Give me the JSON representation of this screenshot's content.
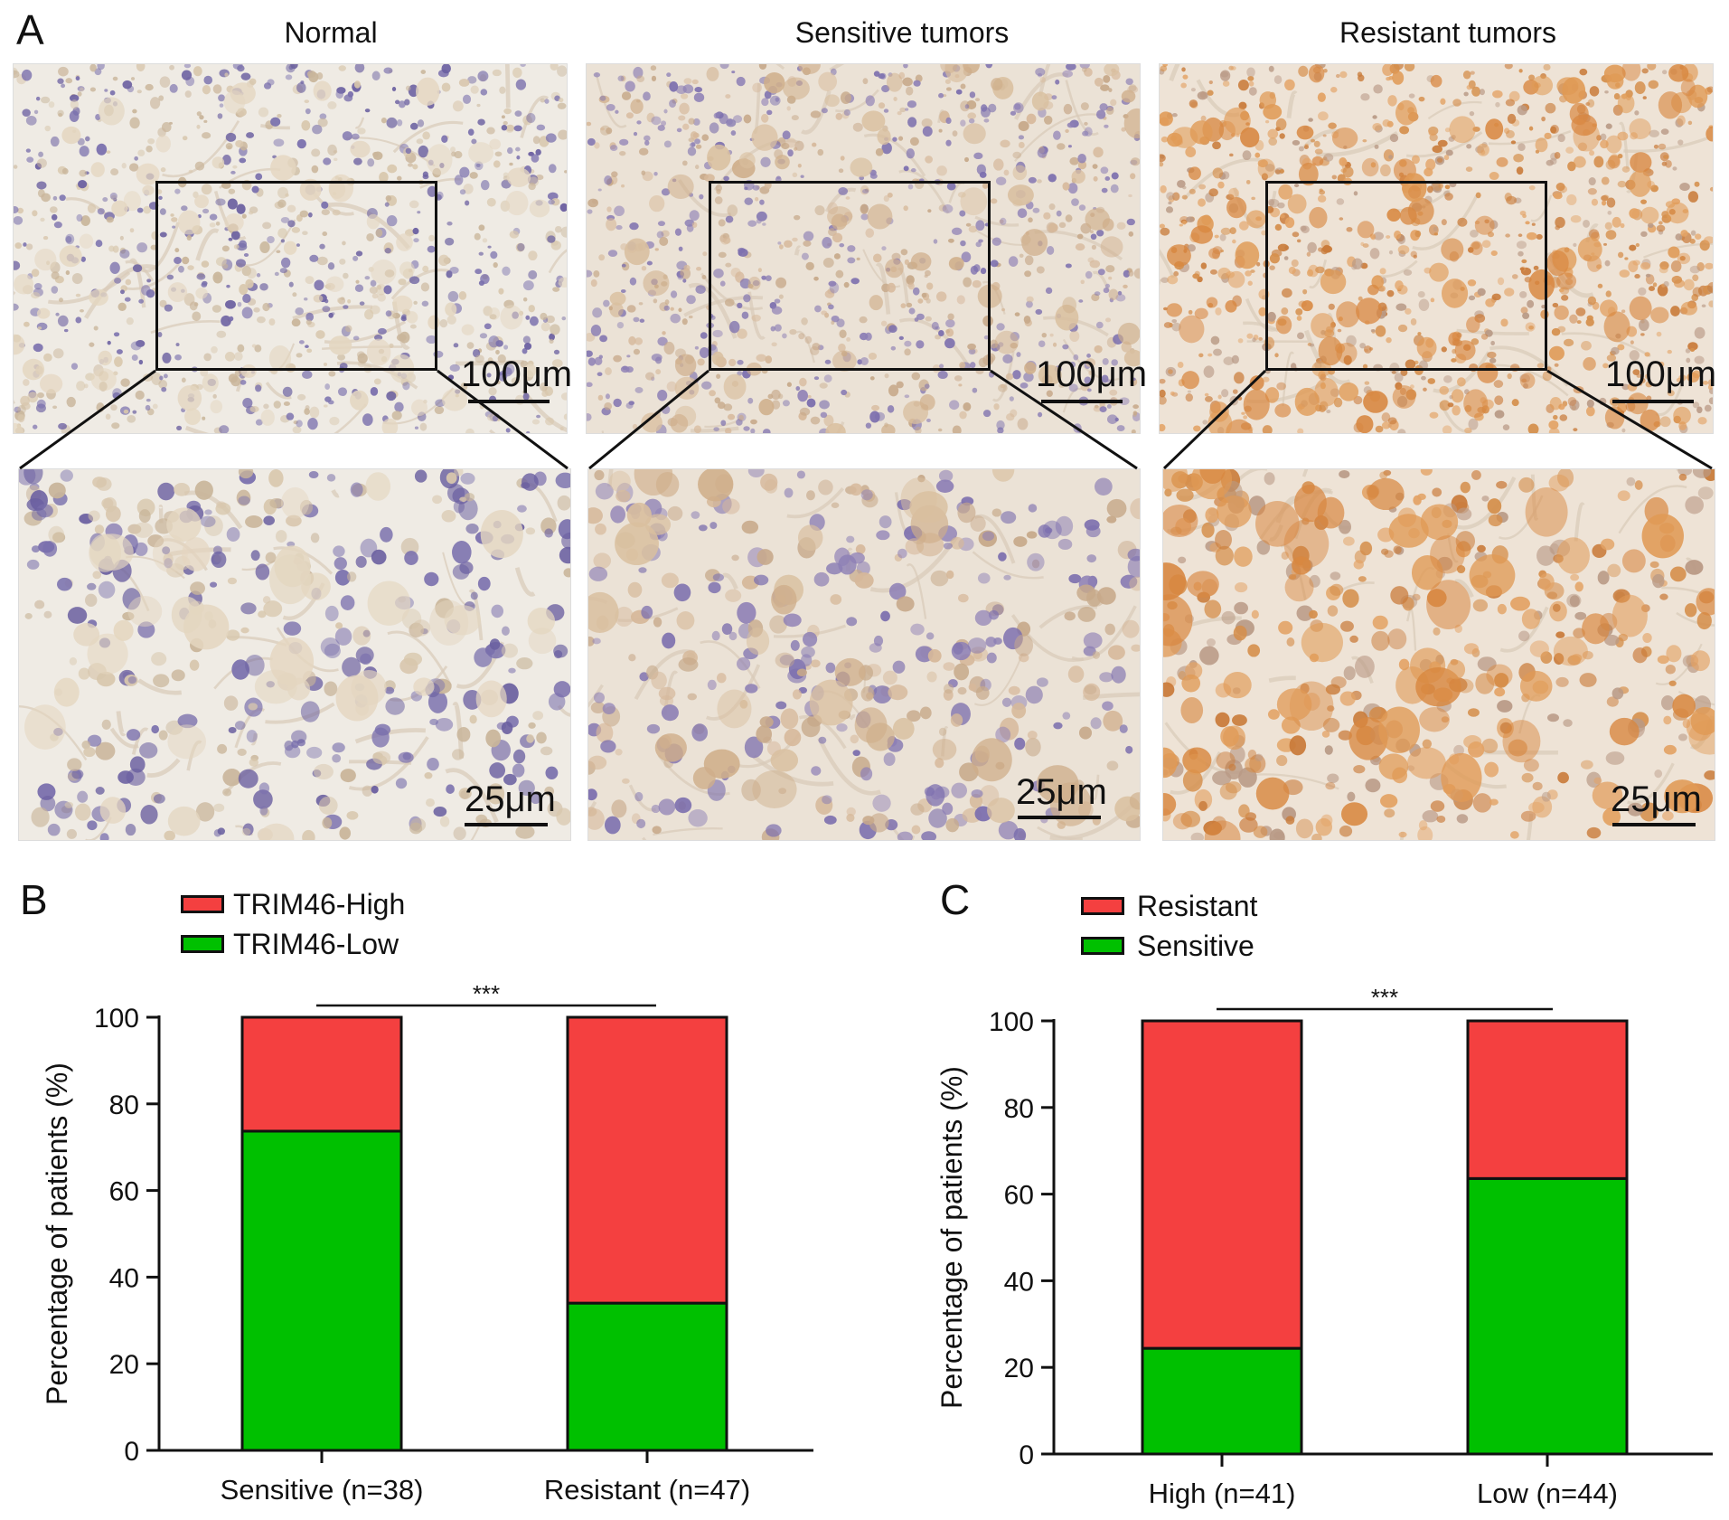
{
  "panel_a": {
    "letter": "A",
    "columns": [
      {
        "title": "Normal",
        "scale_top": "100μm",
        "scale_bottom": "25μm",
        "stain": "normal"
      },
      {
        "title": "Sensitive tumors",
        "scale_top": "100μm",
        "scale_bottom": "25μm",
        "stain": "sensitive"
      },
      {
        "title": "Resistant tumors",
        "scale_top": "100μm",
        "scale_bottom": "25μm",
        "stain": "resistant"
      }
    ]
  },
  "chart_data": [
    {
      "panel": "B",
      "type": "bar",
      "stacked": true,
      "categories": [
        "Sensitive (n=38)",
        "Resistant (n=47)"
      ],
      "series": [
        {
          "name": "TRIM46-Low",
          "values": [
            73.7,
            34.0
          ],
          "color": "#00c000"
        },
        {
          "name": "TRIM46-High",
          "values": [
            26.3,
            66.0
          ],
          "color": "#f44040"
        }
      ],
      "legend": [
        "TRIM46-High",
        "TRIM46-Low"
      ],
      "ylabel": "Percentage of patients (%)",
      "xlabel": "",
      "ylim": [
        0,
        100
      ],
      "yticks": [
        "0",
        "20",
        "40",
        "60",
        "80",
        "100"
      ],
      "significance": "***"
    },
    {
      "panel": "C",
      "type": "bar",
      "stacked": true,
      "categories": [
        "High (n=41)",
        "Low (n=44)"
      ],
      "series": [
        {
          "name": "Sensitive",
          "values": [
            24.4,
            63.6
          ],
          "color": "#00c000"
        },
        {
          "name": "Resistant",
          "values": [
            75.6,
            36.4
          ],
          "color": "#f44040"
        }
      ],
      "legend": [
        "Resistant",
        "Sensitive"
      ],
      "ylabel": "Percentage of patients (%)",
      "xlabel": "",
      "ylim": [
        0,
        100
      ],
      "yticks": [
        "0",
        "20",
        "40",
        "60",
        "80",
        "100"
      ],
      "significance": "***"
    }
  ]
}
